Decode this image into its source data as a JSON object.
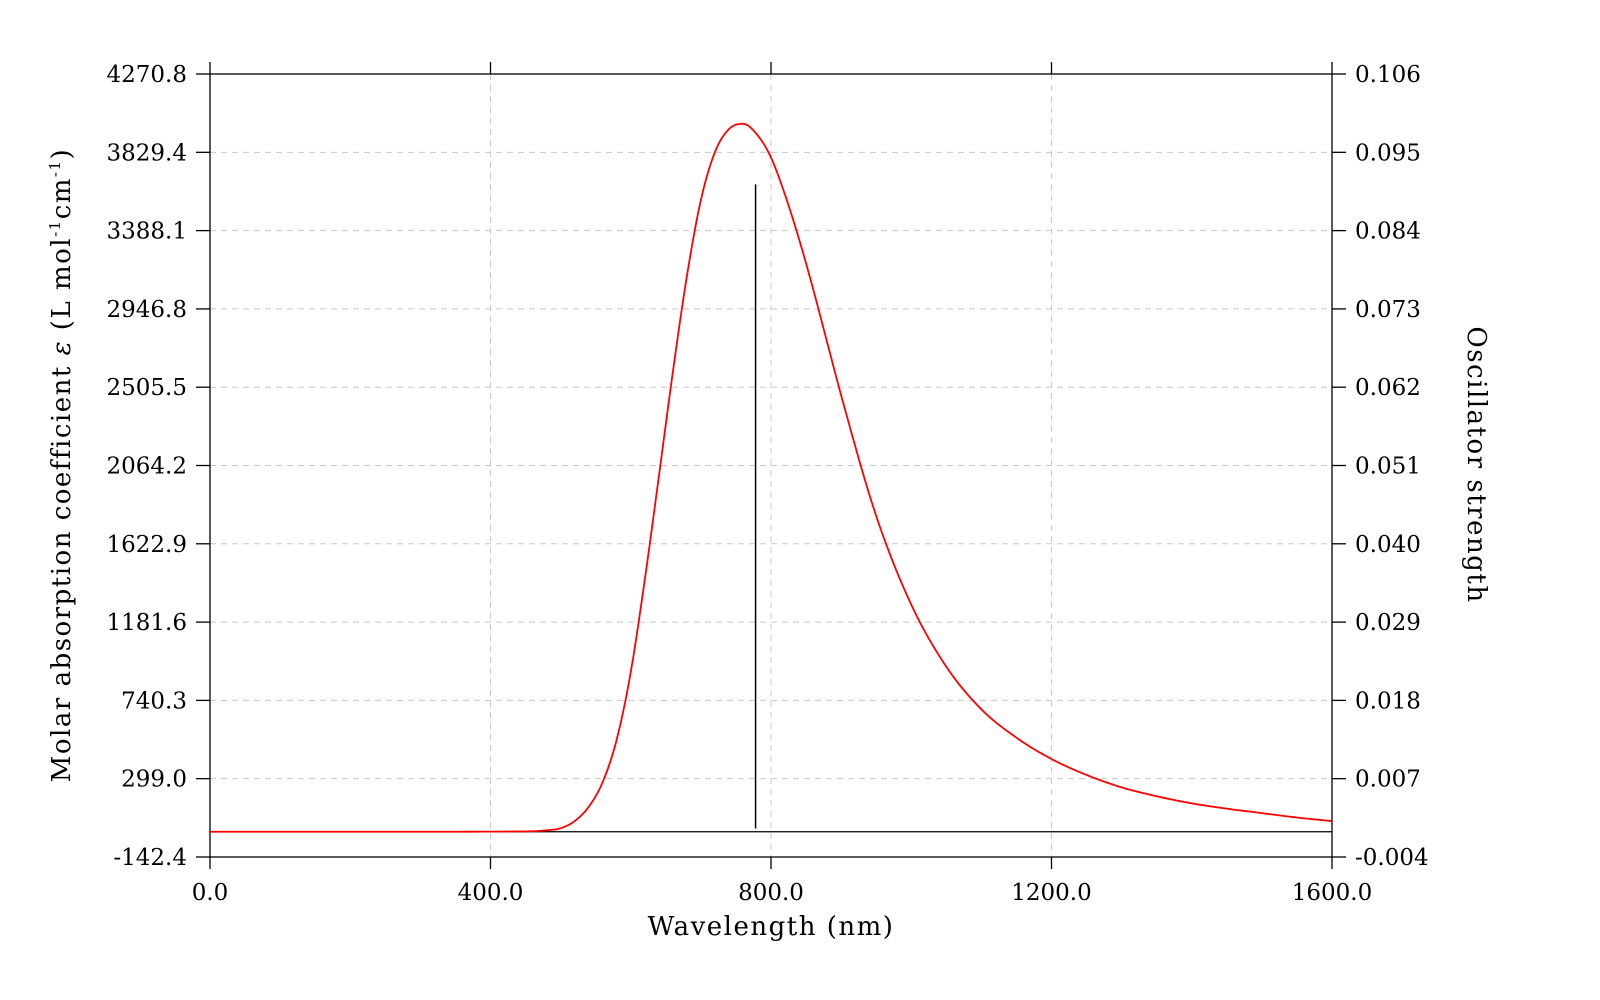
{
  "chart_data": {
    "type": "line",
    "title": "",
    "xlabel": "Wavelength (nm)",
    "ylabel_left": {
      "prefix": "Molar absorption coefficient  ",
      "symbol": "ε",
      "open": " (L mol",
      "sup1": "-1",
      "mid": "cm",
      "sup2": "-1",
      "close": ")"
    },
    "ylabel_right": "Oscillator strength",
    "xlim": [
      0,
      1600
    ],
    "ylim_left": [
      -142.4,
      4270.8
    ],
    "ylim_right": [
      -0.004,
      0.106
    ],
    "x_ticks": [
      "0.0",
      "400.0",
      "800.0",
      "1200.0",
      "1600.0"
    ],
    "x_tick_values": [
      0,
      400,
      800,
      1200,
      1600
    ],
    "y_left_ticks": [
      "-142.4",
      "299.0",
      "740.3",
      "1181.6",
      "1622.9",
      "2064.2",
      "2505.5",
      "2946.8",
      "3388.1",
      "3829.4",
      "4270.8"
    ],
    "y_left_tick_values": [
      -142.4,
      299.0,
      740.3,
      1181.6,
      1622.9,
      2064.2,
      2505.5,
      2946.8,
      3388.1,
      3829.4,
      4270.8
    ],
    "y_right_ticks": [
      "-0.004",
      "0.007",
      "0.018",
      "0.029",
      "0.040",
      "0.051",
      "0.062",
      "0.073",
      "0.084",
      "0.095",
      "0.106"
    ],
    "grid": true,
    "series": [
      {
        "color": "#ff0000",
        "x": [
          0,
          300,
          450,
          480,
          500,
          520,
          540,
          560,
          580,
          600,
          620,
          640,
          660,
          680,
          700,
          720,
          740,
          760,
          780,
          800,
          820,
          840,
          860,
          880,
          900,
          950,
          1000,
          1050,
          1100,
          1150,
          1200,
          1250,
          1300,
          1350,
          1400,
          1450,
          1500,
          1550,
          1600
        ],
        "y": [
          0,
          0,
          2,
          8,
          20,
          60,
          140,
          280,
          520,
          900,
          1420,
          2000,
          2590,
          3130,
          3560,
          3830,
          3960,
          3990,
          3930,
          3800,
          3590,
          3340,
          3060,
          2760,
          2460,
          1780,
          1280,
          930,
          690,
          530,
          410,
          320,
          250,
          200,
          160,
          130,
          105,
          80,
          60
        ]
      }
    ],
    "sticks": [
      {
        "x": 778,
        "f": 0.0905,
        "color": "#000000"
      }
    ]
  }
}
